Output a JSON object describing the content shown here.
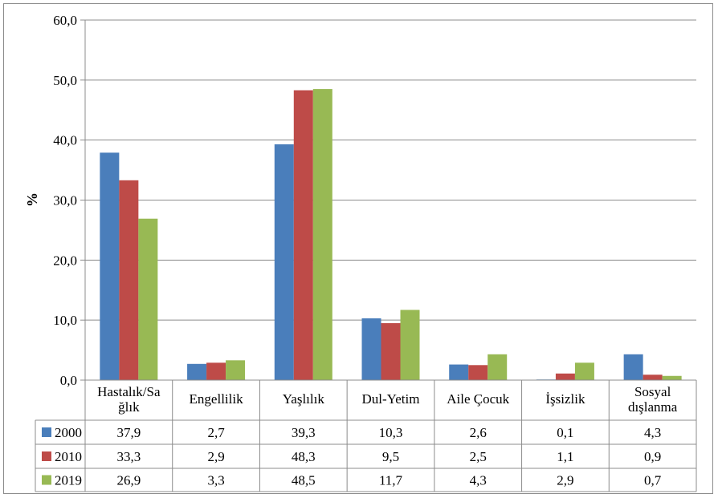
{
  "chart_data": {
    "type": "bar",
    "ylabel": "%",
    "ylim": [
      0,
      60
    ],
    "yticks": [
      "0,0",
      "10,0",
      "20,0",
      "30,0",
      "40,0",
      "50,0",
      "60,0"
    ],
    "grid": true,
    "legend": "data-table-left",
    "categories": [
      [
        "Hastalık/Sa",
        "ğlık"
      ],
      [
        "Engellilik"
      ],
      [
        "Yaşlılık"
      ],
      [
        "Dul-Yetim"
      ],
      [
        "Aile  Çocuk"
      ],
      [
        "İşsizlik"
      ],
      [
        "Sosyal",
        "dışlanma"
      ]
    ],
    "series": [
      {
        "name": "2000",
        "color": "#4a7ebb",
        "values": [
          37.9,
          2.7,
          39.3,
          10.3,
          2.6,
          0.1,
          4.3
        ],
        "labels": [
          "37,9",
          "2,7",
          "39,3",
          "10,3",
          "2,6",
          "0,1",
          "4,3"
        ]
      },
      {
        "name": "2010",
        "color": "#be4b48",
        "values": [
          33.3,
          2.9,
          48.3,
          9.5,
          2.5,
          1.1,
          0.9
        ],
        "labels": [
          "33,3",
          "2,9",
          "48,3",
          "9,5",
          "2,5",
          "1,1",
          "0,9"
        ]
      },
      {
        "name": "2019",
        "color": "#98b954",
        "values": [
          26.9,
          3.3,
          48.5,
          11.7,
          4.3,
          2.9,
          0.7
        ],
        "labels": [
          "26,9",
          "3,3",
          "48,5",
          "11,7",
          "4,3",
          "2,9",
          "0,7"
        ]
      }
    ]
  }
}
